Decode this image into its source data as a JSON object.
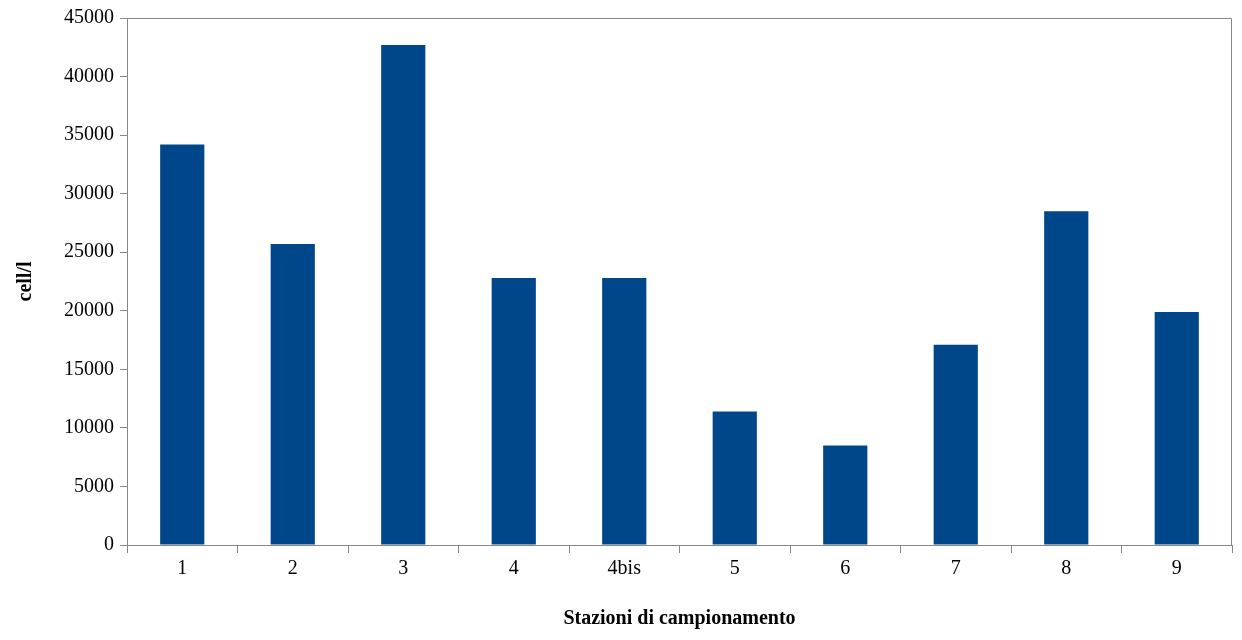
{
  "chart_data": {
    "type": "bar",
    "xlabel": "Stazioni di campionamento",
    "ylabel": "cell/l",
    "categories": [
      "1",
      "2",
      "3",
      "4",
      "4bis",
      "5",
      "6",
      "7",
      "8",
      "9"
    ],
    "values": [
      34200,
      25700,
      42700,
      22800,
      22800,
      11400,
      8500,
      17100,
      28500,
      19900
    ],
    "color": "#00468b",
    "ylim": [
      0,
      45000
    ],
    "yticks": [
      0,
      5000,
      10000,
      15000,
      20000,
      25000,
      30000,
      35000,
      40000,
      45000
    ],
    "grid": false,
    "legend": false
  }
}
